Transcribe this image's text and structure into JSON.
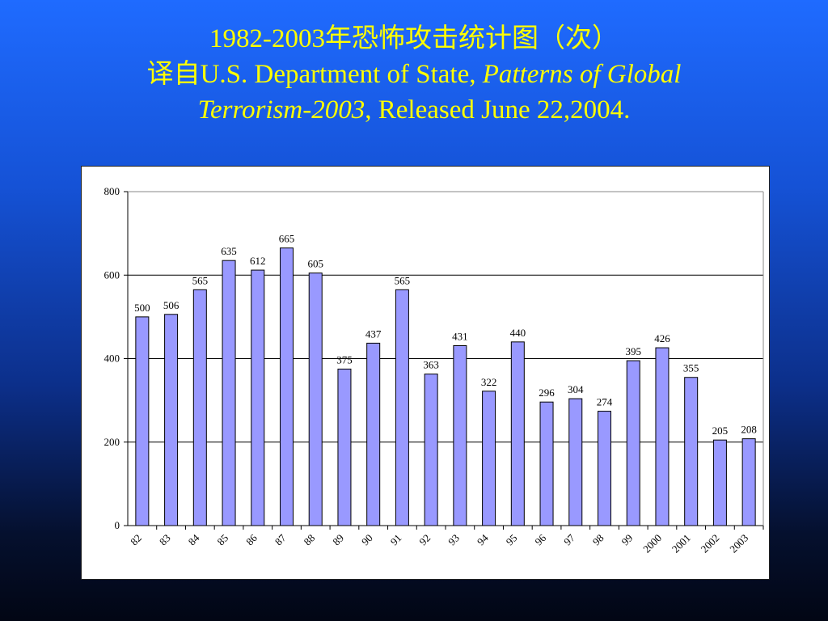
{
  "slide": {
    "title_line1": "1982-2003年恐怖攻击统计图（次）",
    "title_line2_prefix": "译自U.S. Department of State, ",
    "title_line2_italic": "Patterns of Global",
    "title_line3_italic": "Terrorism-2003",
    "title_line3_suffix": ", Released June 22,2004."
  },
  "colors": {
    "title": "#ffff00",
    "bar_fill": "#9999ff",
    "bar_stroke": "#000000"
  },
  "chart_data": {
    "type": "bar",
    "title": "",
    "xlabel": "",
    "ylabel": "",
    "categories": [
      "82",
      "83",
      "84",
      "85",
      "86",
      "87",
      "88",
      "89",
      "90",
      "91",
      "92",
      "93",
      "94",
      "95",
      "96",
      "97",
      "98",
      "99",
      "2000",
      "2001",
      "2002",
      "2003"
    ],
    "values": [
      500,
      506,
      565,
      635,
      612,
      665,
      605,
      375,
      437,
      565,
      363,
      431,
      322,
      440,
      296,
      304,
      274,
      395,
      426,
      355,
      205,
      208
    ],
    "ylim": [
      0,
      800
    ],
    "yticks": [
      0,
      200,
      400,
      600,
      800
    ],
    "grid": true,
    "legend": "none"
  }
}
